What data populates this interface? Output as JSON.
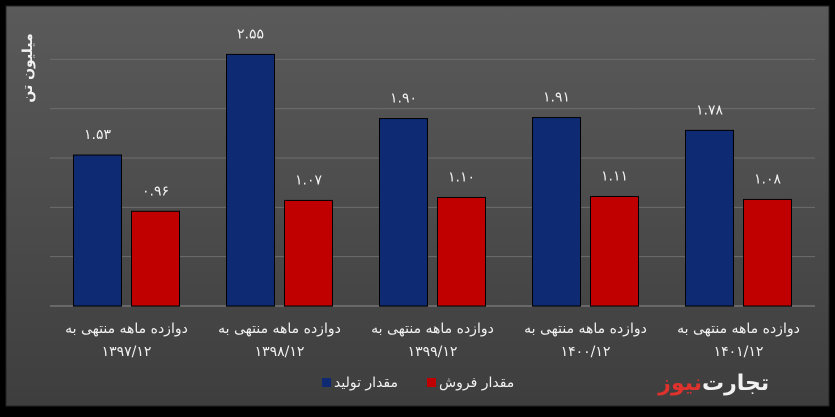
{
  "chart_data": {
    "type": "bar",
    "title": "",
    "ylabel": "میلیون تن",
    "xlabel": "",
    "ylim": [
      0,
      3
    ],
    "grid": true,
    "legend_position": "bottom",
    "categories": [
      [
        "دوازده ماهه منتهی به",
        "۱۳۹۷/۱۲"
      ],
      [
        "دوازده ماهه منتهی به",
        "۱۳۹۸/۱۲"
      ],
      [
        "دوازده ماهه منتهی به",
        "۱۳۹۹/۱۲"
      ],
      [
        "دوازده ماهه منتهی به",
        "۱۴۰۰/۱۲"
      ],
      [
        "دوازده ماهه منتهی به",
        "۱۴۰۱/۱۲"
      ]
    ],
    "series": [
      {
        "name": "مقدار تولید",
        "color": "#0d2a73",
        "values": [
          1.53,
          2.55,
          1.9,
          1.91,
          1.78
        ],
        "labels": [
          "۱.۵۳",
          "۲.۵۵",
          "۱.۹۰",
          "۱.۹۱",
          "۱.۷۸"
        ]
      },
      {
        "name": "مقدار فروش",
        "color": "#c00000",
        "values": [
          0.96,
          1.07,
          1.1,
          1.11,
          1.08
        ],
        "labels": [
          "۰.۹۶",
          "۱.۰۷",
          "۱.۱۰",
          "۱.۱۱",
          "۱.۰۸"
        ]
      }
    ]
  },
  "logo": {
    "part1": "تجارت",
    "part2": "نیوز"
  }
}
